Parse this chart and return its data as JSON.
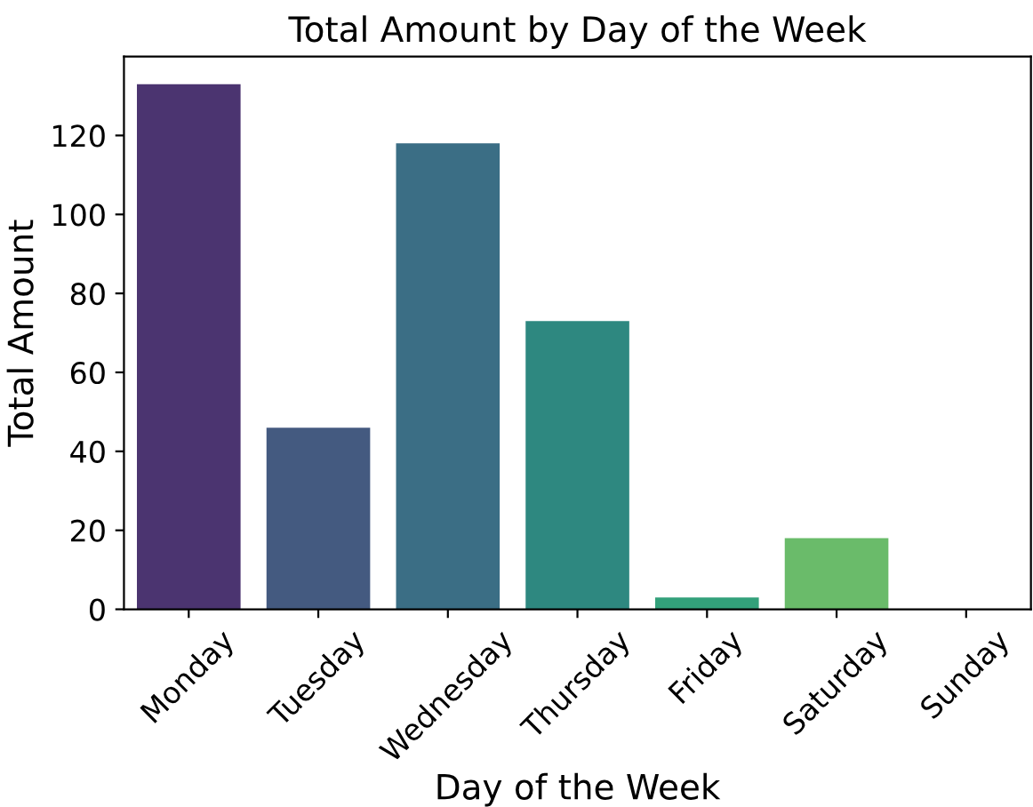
{
  "chart_data": {
    "type": "bar",
    "title": "Total Amount by Day of the Week",
    "xlabel": "Day of the Week",
    "ylabel": "Total Amount",
    "categories": [
      "Monday",
      "Tuesday",
      "Wednesday",
      "Thursday",
      "Friday",
      "Saturday",
      "Sunday"
    ],
    "values": [
      133,
      46,
      118,
      73,
      3,
      18,
      0
    ],
    "colors": [
      "#4b3470",
      "#445a80",
      "#3b6e85",
      "#2e8880",
      "#33a07a",
      "#6abb6a",
      "#b5c84f"
    ],
    "ylim": [
      0,
      140
    ],
    "yticks": [
      0,
      20,
      40,
      60,
      80,
      100,
      120
    ],
    "grid": false,
    "legend": false
  }
}
